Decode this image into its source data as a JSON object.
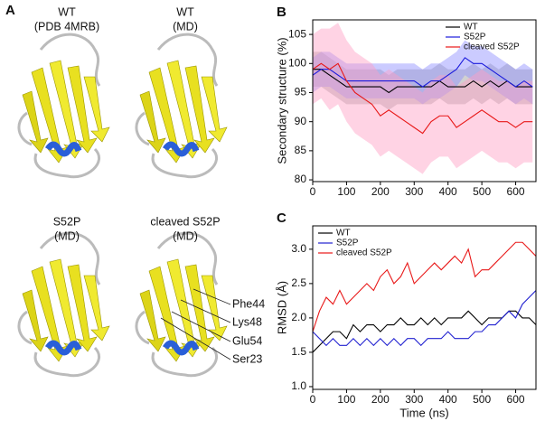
{
  "panel_a": {
    "label": "A",
    "structures": [
      {
        "title": "WT",
        "subtitle": "(PDB 4MRB)"
      },
      {
        "title": "WT",
        "subtitle": "(MD)"
      },
      {
        "title": "S52P",
        "subtitle": "(MD)"
      },
      {
        "title": "cleaved S52P",
        "subtitle": "(MD)"
      }
    ],
    "residues": [
      "Phe44",
      "Lys48",
      "Glu54",
      "Ser23"
    ]
  },
  "chart_data": [
    {
      "type": "line",
      "panel": "B",
      "ylabel": "Secondary structure (%)",
      "x": [
        0,
        25,
        50,
        75,
        100,
        125,
        150,
        175,
        200,
        225,
        250,
        275,
        300,
        325,
        350,
        375,
        400,
        425,
        450,
        475,
        500,
        525,
        550,
        575,
        600,
        625,
        650
      ],
      "xlim": [
        0,
        660
      ],
      "xticks": [
        0,
        100,
        200,
        300,
        400,
        500,
        600
      ],
      "ylim": [
        79.7,
        107.5
      ],
      "yticks": [
        80,
        85,
        90,
        95,
        100,
        105
      ],
      "legend": "top-right",
      "series": [
        {
          "name": "WT",
          "color": "#000000",
          "band_color": "#9a9a9a",
          "values": [
            99,
            99,
            98,
            97,
            96,
            96,
            96,
            96,
            96,
            95,
            96,
            96,
            96,
            96,
            96,
            97,
            96,
            96,
            96,
            97,
            96,
            97,
            96,
            97,
            96,
            96,
            96
          ],
          "band_lower": [
            96,
            96,
            95,
            94,
            93,
            93,
            93,
            93,
            93,
            92,
            93,
            93,
            93,
            93,
            93,
            94,
            93,
            93,
            93,
            94,
            93,
            94,
            93,
            94,
            93,
            93,
            93
          ],
          "band_upper": [
            102,
            102,
            101,
            100,
            99,
            99,
            99,
            99,
            99,
            98,
            99,
            99,
            99,
            99,
            99,
            100,
            99,
            99,
            99,
            100,
            99,
            100,
            99,
            100,
            99,
            99,
            99
          ]
        },
        {
          "name": "S52P",
          "color": "#1a1adc",
          "band_color": "#8c8cff",
          "values": [
            98,
            99,
            99,
            98,
            97,
            97,
            97,
            97,
            97,
            97,
            97,
            97,
            97,
            96,
            97,
            97,
            98,
            99,
            101,
            100,
            100,
            99,
            98,
            97,
            96,
            97,
            96
          ],
          "band_lower": [
            95,
            96,
            96,
            95,
            94,
            94,
            94,
            94,
            94,
            94,
            94,
            94,
            94,
            93,
            94,
            94,
            95,
            96,
            98,
            97,
            97,
            96,
            95,
            94,
            93,
            94,
            93
          ],
          "band_upper": [
            101,
            102,
            102,
            101,
            100,
            100,
            100,
            100,
            100,
            100,
            100,
            100,
            100,
            99,
            100,
            100,
            101,
            102,
            104,
            103,
            103,
            102,
            101,
            100,
            99,
            100,
            99
          ]
        },
        {
          "name": "cleaved S52P",
          "color": "#e81818",
          "band_color": "#ff9ec4",
          "values": [
            99,
            100,
            99,
            100,
            97,
            95,
            94,
            93,
            91,
            92,
            91,
            90,
            89,
            88,
            90,
            91,
            91,
            89,
            90,
            91,
            92,
            91,
            90,
            90,
            89,
            90,
            90
          ],
          "band_lower": [
            93,
            94,
            92,
            93,
            90,
            88,
            87,
            86,
            84,
            85,
            84,
            83,
            82,
            81,
            83,
            84,
            84,
            82,
            83,
            84,
            85,
            84,
            83,
            83,
            82,
            83,
            83
          ],
          "band_upper": [
            105,
            106,
            106,
            107,
            104,
            102,
            101,
            100,
            98,
            99,
            98,
            97,
            96,
            95,
            97,
            98,
            98,
            96,
            97,
            98,
            99,
            98,
            97,
            97,
            96,
            97,
            97
          ]
        }
      ]
    },
    {
      "type": "line",
      "panel": "C",
      "ylabel": "RMSD (Å)",
      "xlabel": "Time (ns)",
      "x": [
        0,
        20,
        40,
        60,
        80,
        100,
        120,
        140,
        160,
        180,
        200,
        220,
        240,
        260,
        280,
        300,
        320,
        340,
        360,
        380,
        400,
        420,
        440,
        460,
        480,
        500,
        520,
        540,
        560,
        580,
        600,
        620,
        640,
        660
      ],
      "xlim": [
        0,
        660
      ],
      "xticks": [
        0,
        100,
        200,
        300,
        400,
        500,
        600
      ],
      "ylim": [
        0.96,
        3.34
      ],
      "yticks": [
        {
          "value": 1,
          "label": "1.0"
        },
        1.5,
        {
          "value": 2,
          "label": "2.0"
        },
        2.5,
        {
          "value": 3,
          "label": "3.0"
        }
      ],
      "legend": "top-left",
      "series": [
        {
          "name": "WT",
          "color": "#000000",
          "values": [
            1.5,
            1.6,
            1.7,
            1.8,
            1.8,
            1.7,
            1.9,
            1.8,
            1.9,
            1.9,
            1.8,
            1.9,
            1.9,
            2.0,
            1.9,
            1.9,
            2.0,
            1.9,
            2.0,
            1.9,
            2.0,
            2.0,
            2.0,
            2.1,
            2.0,
            1.9,
            2.0,
            2.0,
            2.0,
            2.1,
            2.1,
            2.0,
            2.0,
            1.9
          ]
        },
        {
          "name": "S52P",
          "color": "#2020d0",
          "values": [
            1.8,
            1.7,
            1.6,
            1.7,
            1.6,
            1.6,
            1.7,
            1.6,
            1.7,
            1.6,
            1.7,
            1.6,
            1.7,
            1.6,
            1.7,
            1.7,
            1.6,
            1.7,
            1.7,
            1.7,
            1.8,
            1.7,
            1.7,
            1.7,
            1.8,
            1.8,
            1.9,
            1.9,
            2.0,
            2.1,
            2.0,
            2.2,
            2.3,
            2.4
          ]
        },
        {
          "name": "cleaved S52P",
          "color": "#e81818",
          "values": [
            1.8,
            2.1,
            2.3,
            2.2,
            2.4,
            2.2,
            2.3,
            2.4,
            2.5,
            2.4,
            2.6,
            2.7,
            2.5,
            2.6,
            2.8,
            2.5,
            2.6,
            2.7,
            2.8,
            2.7,
            2.8,
            2.9,
            2.8,
            3.0,
            2.6,
            2.7,
            2.7,
            2.8,
            2.9,
            3.0,
            3.1,
            3.1,
            3.0,
            2.9
          ]
        }
      ]
    }
  ]
}
